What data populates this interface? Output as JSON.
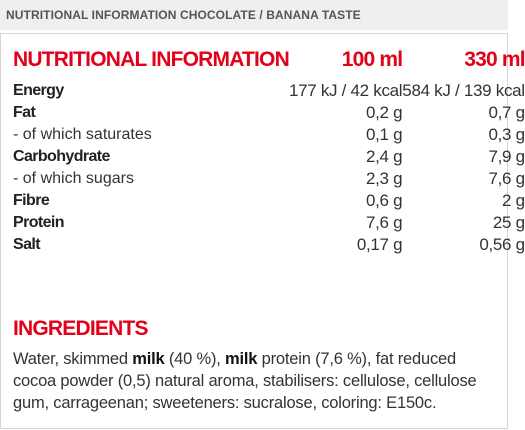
{
  "header": {
    "title": "NUTRITIONAL INFORMATION CHOCOLATE / BANANA TASTE"
  },
  "table": {
    "columns": [
      "NUTRITIONAL INFORMATION",
      "100 ml",
      "330 ml"
    ],
    "rows": [
      {
        "label": "Energy",
        "bold": true,
        "per_100": "177 kJ / 42 kcal",
        "per_330": "584 kJ / 139 kcal"
      },
      {
        "label": "Fat",
        "bold": true,
        "per_100": "0,2 g",
        "per_330": "0,7 g"
      },
      {
        "label": "- of which saturates",
        "bold": false,
        "per_100": "0,1 g",
        "per_330": "0,3 g"
      },
      {
        "label": "Carbohydrate",
        "bold": true,
        "per_100": "2,4 g",
        "per_330": "7,9 g"
      },
      {
        "label": "- of which sugars",
        "bold": false,
        "per_100": "2,3 g",
        "per_330": "7,6 g"
      },
      {
        "label": "Fibre",
        "bold": true,
        "per_100": "0,6 g",
        "per_330": "2 g"
      },
      {
        "label": "Protein",
        "bold": true,
        "per_100": "7,6 g",
        "per_330": "25 g"
      },
      {
        "label": "Salt",
        "bold": true,
        "per_100": "0,17 g",
        "per_330": "0,56 g"
      }
    ]
  },
  "ingredients": {
    "title": "INGREDIENTS",
    "segments": [
      {
        "text": "Water, skimmed ",
        "bold": false
      },
      {
        "text": "milk",
        "bold": true
      },
      {
        "text": " (40 %), ",
        "bold": false
      },
      {
        "text": "milk",
        "bold": true
      },
      {
        "text": " protein (7,6 %), fat reduced cocoa powder (0,5) natural aroma, stabilisers: cellulose, cellulose gum, carrageenan; sweeteners: sucralose, coloring: E150c.",
        "bold": false
      }
    ]
  }
}
